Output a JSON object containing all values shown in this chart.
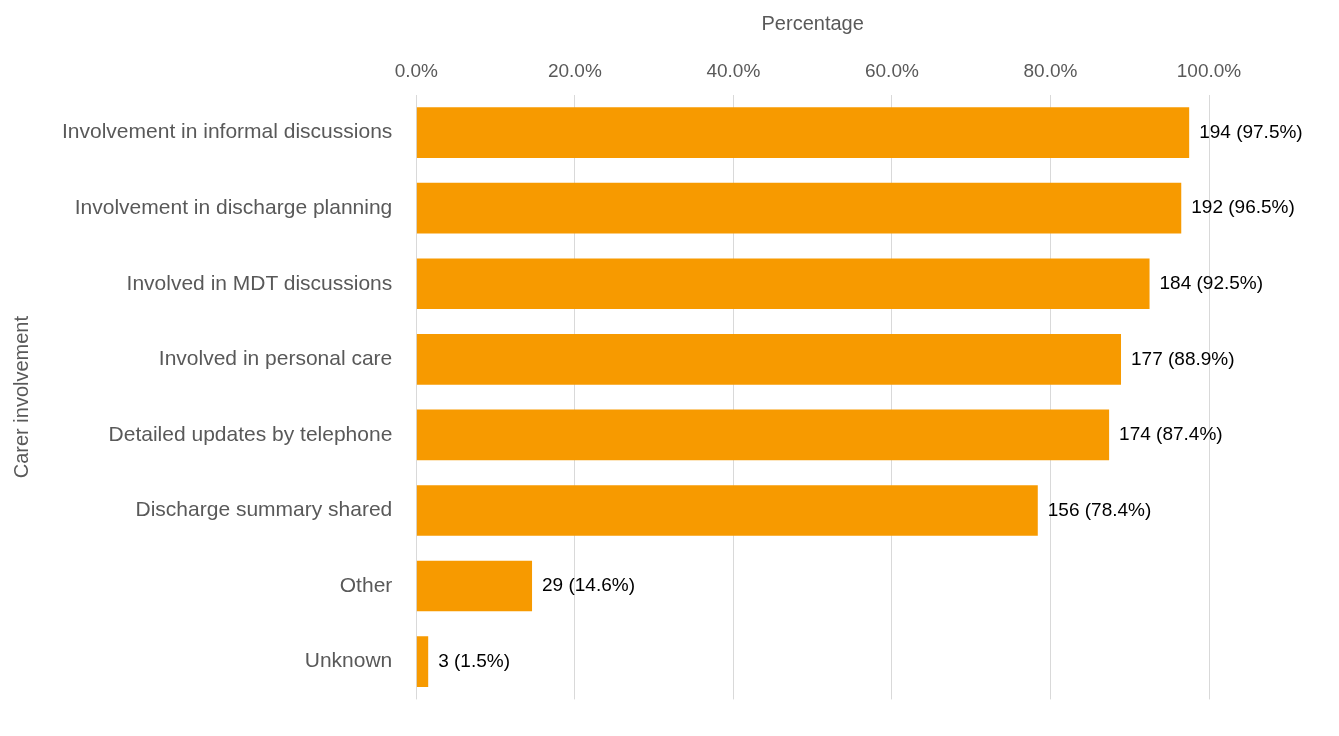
{
  "chart_data": {
    "type": "bar",
    "orientation": "horizontal",
    "xlabel": "Percentage",
    "ylabel": "Carer involvement",
    "categories": [
      "Involvement in informal discussions",
      "Involvement in discharge planning",
      "Involved in MDT discussions",
      "Involved in personal care",
      "Detailed updates by telephone",
      "Discharge summary shared",
      "Other",
      "Unknown"
    ],
    "values": [
      97.5,
      96.5,
      92.5,
      88.9,
      87.4,
      78.4,
      14.6,
      1.5
    ],
    "value_labels": [
      "194 (97.5%)",
      "192 (96.5%)",
      "184 (92.5%)",
      "177 (88.9%)",
      "174 (87.4%)",
      "156 (78.4%)",
      "29 (14.6%)",
      "3 (1.5%)"
    ],
    "color": "#f79a00",
    "xlim": [
      0,
      100
    ],
    "xticks": [
      {
        "value": 0,
        "label": "0.0%"
      },
      {
        "value": 20,
        "label": "20.0%"
      },
      {
        "value": 40,
        "label": "40.0%"
      },
      {
        "value": 60,
        "label": "60.0%"
      },
      {
        "value": 80,
        "label": "80.0%"
      },
      {
        "value": 100,
        "label": "100.0%"
      }
    ],
    "grid": "x"
  }
}
